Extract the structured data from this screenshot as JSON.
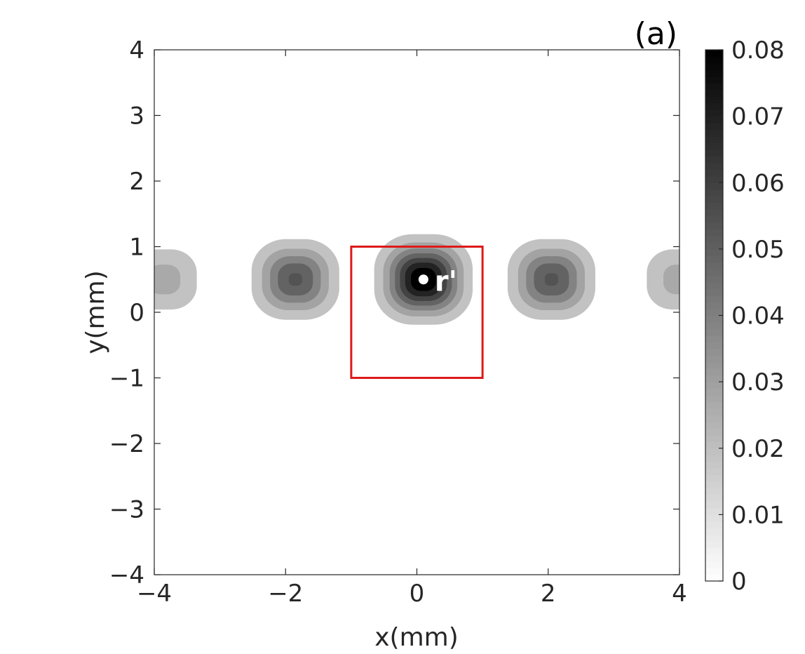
{
  "chart_data": {
    "type": "heatmap",
    "panel_label": "(a)",
    "xlabel": "x(mm)",
    "ylabel": "y(mm)",
    "xlim": [
      -4,
      4
    ],
    "ylim": [
      -4,
      4
    ],
    "x_ticks": [
      -4,
      -2,
      0,
      2,
      4
    ],
    "y_ticks": [
      -4,
      -3,
      -2,
      -1,
      0,
      1,
      2,
      3,
      4
    ],
    "x_tick_labels": [
      "−4",
      "−2",
      "0",
      "2",
      "4"
    ],
    "y_tick_labels": [
      "−4",
      "−3",
      "−2",
      "−1",
      "0",
      "1",
      "2",
      "3",
      "4"
    ],
    "grid": false,
    "colormap": "gray-reversed",
    "colorbar": {
      "range": [
        0,
        0.08
      ],
      "ticks": [
        0,
        0.01,
        0.02,
        0.03,
        0.04,
        0.05,
        0.06,
        0.07,
        0.08
      ],
      "tick_labels": [
        "0",
        "0.01",
        "0.02",
        "0.03",
        "0.04",
        "0.05",
        "0.06",
        "0.07",
        "0.08"
      ]
    },
    "contour_levels": [
      0.01,
      0.02,
      0.03,
      0.04,
      0.05,
      0.06,
      0.07
    ],
    "peaks": [
      {
        "x": -3.85,
        "y": 0.5,
        "amplitude": 0.025
      },
      {
        "x": -1.85,
        "y": 0.5,
        "amplitude": 0.052
      },
      {
        "x": 0.1,
        "y": 0.5,
        "amplitude": 0.08
      },
      {
        "x": 2.05,
        "y": 0.5,
        "amplitude": 0.052
      },
      {
        "x": 4.0,
        "y": 0.5,
        "amplitude": 0.025
      }
    ],
    "highlight_box": {
      "x0": -1,
      "x1": 1,
      "y0": -1,
      "y1": 1,
      "color": "#dd1a1a"
    },
    "marker": {
      "x": 0.1,
      "y": 0.5,
      "label": "r'",
      "color": "#ffffff"
    }
  }
}
